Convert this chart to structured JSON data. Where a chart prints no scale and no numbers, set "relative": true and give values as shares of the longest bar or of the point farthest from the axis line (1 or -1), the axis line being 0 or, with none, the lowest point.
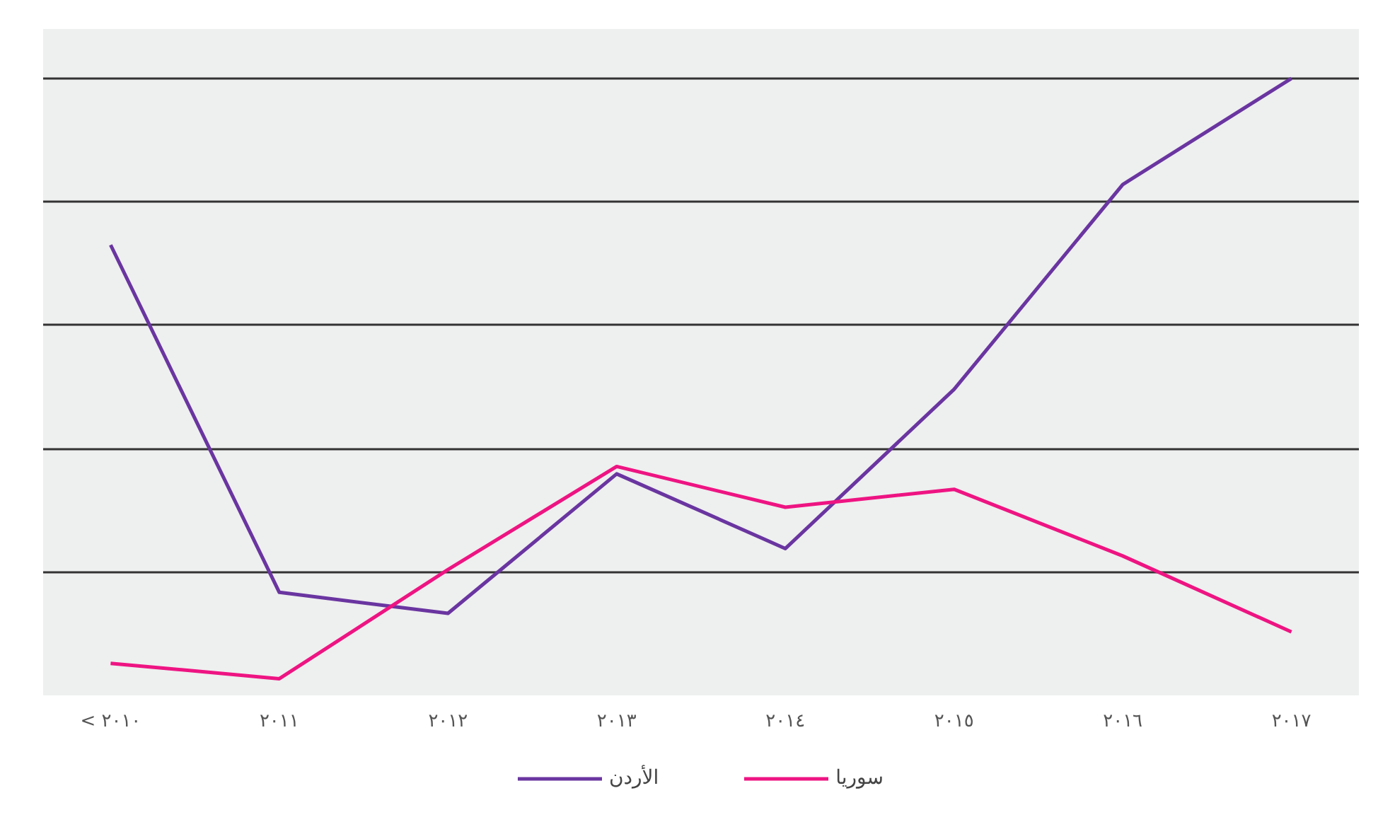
{
  "chart_data": {
    "type": "line",
    "relative": true,
    "categories": [
      "< ٢٠١٠",
      "٢٠١١",
      "٢٠١٢",
      "٢٠١٣",
      "٢٠١٤",
      "٢٠١٥",
      "٢٠١٦",
      "٢٠١٧"
    ],
    "series": [
      {
        "name": "الأردن",
        "color": "#6a35a0",
        "values": [
          0.73,
          0.167,
          0.133,
          0.359,
          0.238,
          0.496,
          0.828,
          1
        ]
      },
      {
        "name": "سوريا",
        "color": "#ee1482",
        "values": [
          0.052,
          0.027,
          0.204,
          0.371,
          0.305,
          0.334,
          0.226,
          0.103
        ]
      }
    ],
    "grid": "y",
    "legend": "bottom",
    "line_style": "solid",
    "marker": "none"
  }
}
